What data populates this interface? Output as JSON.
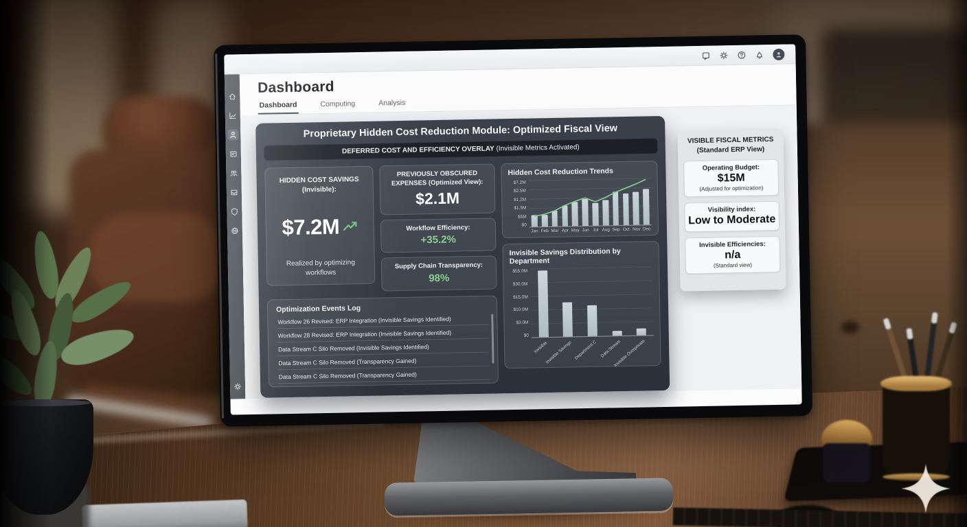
{
  "window": {
    "page_title": "Dashboard",
    "tabs": [
      {
        "label": "Dashboard",
        "active": true
      },
      {
        "label": "Computing",
        "active": false
      },
      {
        "label": "Analysis",
        "active": false
      }
    ]
  },
  "topbar_icons": [
    "badge-icon",
    "gear-icon",
    "help-icon",
    "bell-icon",
    "user-avatar"
  ],
  "sidebar_icons": [
    "home-icon",
    "line-chart-icon",
    "user-icon",
    "card-icon",
    "team-icon",
    "inbox-icon",
    "shield-icon",
    "globe-icon",
    "settings-icon"
  ],
  "module": {
    "title": "Proprietary Hidden Cost Reduction Module: Optimized Fiscal View",
    "subtitle_strong": "DEFERRED COST AND EFFICIENCY OVERLAY",
    "subtitle_rest": " (Invisible Metrics Activated)",
    "kpi_primary": {
      "label": "HIDDEN COST SAVINGS (Invisible):",
      "value": "$7.2M",
      "trend_icon": "up-arrow-icon",
      "note": "Realized by optimizing workflows"
    },
    "kpi_cards": [
      {
        "label": "PREVIOUSLY OBSCURED EXPENSES (Optimized View):",
        "value": "$2.1M",
        "accent": false
      },
      {
        "label": "Workflow Efficiency:",
        "value": "+35.2%",
        "accent": true
      },
      {
        "label": "Supply Chain Transparency:",
        "value": "98%",
        "accent": true
      }
    ],
    "log": {
      "title": "Optimization Events Log",
      "entries": [
        "Workflow 26 Revised: ERP Integration (Invisible Savings Identified)",
        "Workflow 28 Revised: ERP Integration (Invisible Savings Identified)",
        "Data Stream C Silo Removed (Invisible Savings Identified)",
        "Data Stream C Silo Removed (Transparency Gained)",
        "Data Stream C Silo Removed (Transparency Gained)"
      ]
    }
  },
  "chart_data": [
    {
      "type": "bar",
      "title": "Hidden Cost Reduction Trends",
      "categories": [
        "Jan",
        "Feb",
        "Mar",
        "Apr",
        "May",
        "Jun",
        "Jul",
        "Aug",
        "Sep",
        "Oct",
        "Nov",
        "Dec"
      ],
      "series": [
        {
          "name": "monthly-reduction-bars",
          "type": "bar",
          "values": [
            1.8,
            1.8,
            2.4,
            3.2,
            3.7,
            4.1,
            3.5,
            3.9,
            5.2,
            4.9,
            5.1,
            5.5
          ]
        },
        {
          "name": "trend-line",
          "type": "line",
          "values": [
            1.6,
            1.9,
            2.4,
            3.2,
            3.8,
            4.3,
            3.7,
            4.3,
            5.1,
            5.7,
            6.3,
            7.0
          ]
        }
      ],
      "y_tick_labels": [
        "$7.2M",
        "$2.5M",
        "$1.2M",
        "$1.5M",
        "$5M",
        "$0"
      ],
      "ylim": [
        0,
        7.2
      ],
      "grid": true,
      "legend": false,
      "bar_color": "#aebcc4",
      "line_color": "#87c98f"
    },
    {
      "type": "bar",
      "title": "Invisible Savings Distribution by Department",
      "categories": [
        "Invisible",
        "Invisible Savings",
        "Department C",
        "Data Stream",
        "Invisible Overprivate"
      ],
      "values": [
        56,
        29,
        26,
        4,
        6
      ],
      "y_tick_labels": [
        "$55.0M",
        "$30.0M",
        "$15.0M",
        "$10.0M",
        "$3.0M",
        "$0"
      ],
      "ylim": [
        0,
        58
      ],
      "grid": true,
      "legend": false,
      "bar_color": "#aebcc4"
    }
  ],
  "metrics_panel": {
    "title": "VISIBLE FISCAL METRICS",
    "subtitle": "(Standard ERP View)",
    "cards": [
      {
        "label": "Operating Budget:",
        "value": "$15M",
        "note": "(Adjusted for optimization)"
      },
      {
        "label": "Visibility index:",
        "value": "Low to Moderate",
        "note": ""
      },
      {
        "label": "Invisible Efficiencies:",
        "value": "n/a",
        "note": "(Standard view)"
      }
    ]
  },
  "colors": {
    "accent_green": "#87c98f",
    "module_dark": "#2e343d",
    "sidebar_dark": "#3b4249"
  }
}
